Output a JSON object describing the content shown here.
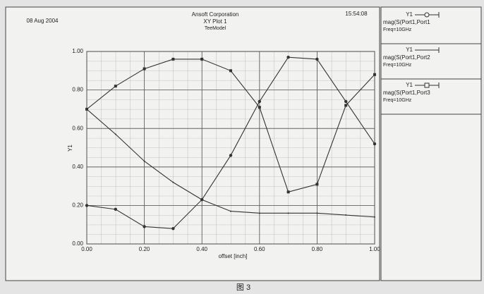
{
  "chart_data": {
    "type": "line",
    "date": "08 Aug 2004",
    "title": "Ansoft Corporation",
    "subtitle": "XY Plot 1",
    "design": "TeeModel",
    "time": "15:54:08",
    "x_label": "offset [inch]",
    "y_label": "Y1",
    "caption": "图 3",
    "grid": true,
    "x": [
      0,
      0.1,
      0.2,
      0.3,
      0.4,
      0.5,
      0.6,
      0.7,
      0.8,
      0.9,
      1.0
    ],
    "xlim": [
      0,
      1
    ],
    "ylim": [
      0,
      1
    ],
    "xticks": [
      {
        "value": 0,
        "label": "0.00"
      },
      {
        "value": 0.2,
        "label": "0.20"
      },
      {
        "value": 0.4,
        "label": "0.40"
      },
      {
        "value": 0.6,
        "label": "0.60"
      },
      {
        "value": 0.8,
        "label": "0.80"
      },
      {
        "value": 1,
        "label": "1.00"
      }
    ],
    "yticks": [
      {
        "value": 0,
        "label": "0.00"
      },
      {
        "value": 0.2,
        "label": "0.20"
      },
      {
        "value": 0.4,
        "label": "0.40"
      },
      {
        "value": 0.6,
        "label": "0.60"
      },
      {
        "value": 0.8,
        "label": "0.80"
      },
      {
        "value": 1,
        "label": "1.00"
      }
    ],
    "series": [
      {
        "trace": "Y1",
        "name": "mag(S(Port1,Port1",
        "freq": "Freq=10GHz",
        "marker": "circle",
        "color": "#333333",
        "values": [
          0.2,
          0.18,
          0.09,
          0.08,
          0.23,
          0.46,
          0.74,
          0.97,
          0.96,
          0.74,
          0.52
        ]
      },
      {
        "trace": "Y1",
        "name": "mag(S(Port1,Port2",
        "freq": "Freq=10GHz",
        "marker": "none",
        "color": "#333333",
        "values": [
          0.7,
          0.57,
          0.43,
          0.32,
          0.23,
          0.17,
          0.16,
          0.16,
          0.16,
          0.15,
          0.14
        ]
      },
      {
        "trace": "Y1",
        "name": "mag(S(Port1,Port3",
        "freq": "Freq=10GHz",
        "marker": "square",
        "color": "#333333",
        "values": [
          0.7,
          0.82,
          0.91,
          0.96,
          0.96,
          0.9,
          0.71,
          0.27,
          0.31,
          0.72,
          0.88
        ]
      }
    ]
  }
}
